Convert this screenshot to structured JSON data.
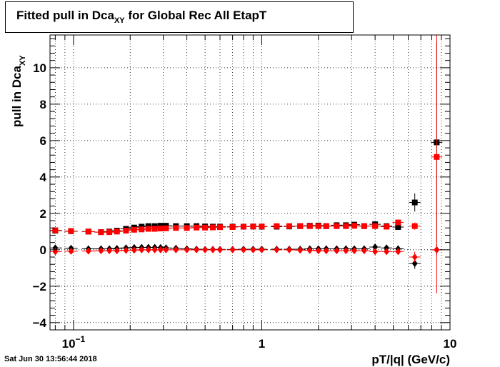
{
  "chart_data": {
    "type": "scatter",
    "title_main": "Fitted pull in Dca",
    "title_sub": "XY",
    "title_rest": " for Global Rec All EtapT",
    "xlabel": "pT/|q| (GeV/c)",
    "ylabel_main": "pull in Dca",
    "ylabel_sub": "XY",
    "x_scale": "log",
    "xlim": [
      0.075,
      10
    ],
    "ylim": [
      -4.4,
      11.8
    ],
    "grid": true,
    "y_ticks": [
      "−4",
      "−2",
      "0",
      "2",
      "4",
      "6",
      "8",
      "10"
    ],
    "y_tick_values": [
      -4,
      -2,
      0,
      2,
      4,
      6,
      8,
      10
    ],
    "x_ticks": [
      {
        "value": 0.1,
        "base": "10",
        "exp": "−1"
      },
      {
        "value": 1,
        "base": "1",
        "exp": ""
      },
      {
        "value": 10,
        "base": "10",
        "exp": ""
      }
    ],
    "series": [
      {
        "color": "#000000",
        "marker": "square",
        "x": [
          0.08,
          0.097,
          0.12,
          0.14,
          0.155,
          0.17,
          0.19,
          0.21,
          0.23,
          0.25,
          0.27,
          0.29,
          0.31,
          0.35,
          0.4,
          0.45,
          0.5,
          0.55,
          0.6,
          0.7,
          0.8,
          0.9,
          1.0,
          1.2,
          1.4,
          1.6,
          1.8,
          2.0,
          2.2,
          2.5,
          2.8,
          3.1,
          3.5,
          4.0,
          4.6,
          5.3,
          6.5,
          8.5
        ],
        "y": [
          1.05,
          1.02,
          1.0,
          0.97,
          1.0,
          1.05,
          1.15,
          1.22,
          1.27,
          1.3,
          1.3,
          1.32,
          1.32,
          1.3,
          1.3,
          1.3,
          1.28,
          1.27,
          1.27,
          1.27,
          1.27,
          1.28,
          1.27,
          1.27,
          1.28,
          1.3,
          1.32,
          1.33,
          1.3,
          1.35,
          1.35,
          1.38,
          1.3,
          1.4,
          1.3,
          1.25,
          2.6,
          5.9
        ],
        "yerr": [
          0.05,
          0.05,
          0.05,
          0.05,
          0.05,
          0.05,
          0.05,
          0.05,
          0.05,
          0.05,
          0.05,
          0.05,
          0.05,
          0.05,
          0.05,
          0.05,
          0.05,
          0.05,
          0.05,
          0.05,
          0.05,
          0.05,
          0.05,
          0.05,
          0.05,
          0.05,
          0.05,
          0.05,
          0.05,
          0.06,
          0.07,
          0.08,
          0.09,
          0.1,
          0.12,
          0.15,
          0.5,
          5.5
        ]
      },
      {
        "color": "#ff0000",
        "marker": "square",
        "x": [
          0.08,
          0.097,
          0.12,
          0.14,
          0.155,
          0.17,
          0.19,
          0.21,
          0.23,
          0.25,
          0.27,
          0.29,
          0.31,
          0.35,
          0.4,
          0.45,
          0.5,
          0.55,
          0.6,
          0.7,
          0.8,
          0.9,
          1.0,
          1.2,
          1.4,
          1.6,
          1.8,
          2.0,
          2.2,
          2.5,
          2.8,
          3.1,
          3.5,
          4.0,
          4.6,
          5.3,
          6.5,
          8.5
        ],
        "y": [
          1.07,
          1.03,
          1.0,
          0.97,
          0.97,
          1.0,
          1.05,
          1.1,
          1.12,
          1.15,
          1.15,
          1.17,
          1.18,
          1.2,
          1.2,
          1.22,
          1.22,
          1.23,
          1.24,
          1.25,
          1.27,
          1.28,
          1.28,
          1.3,
          1.3,
          1.3,
          1.3,
          1.3,
          1.3,
          1.3,
          1.3,
          1.32,
          1.3,
          1.3,
          1.27,
          1.5,
          1.3,
          5.1
        ],
        "yerr": [
          0.05,
          0.05,
          0.05,
          0.05,
          0.05,
          0.05,
          0.05,
          0.05,
          0.05,
          0.05,
          0.05,
          0.05,
          0.05,
          0.05,
          0.05,
          0.05,
          0.05,
          0.05,
          0.05,
          0.05,
          0.05,
          0.05,
          0.05,
          0.05,
          0.05,
          0.05,
          0.05,
          0.05,
          0.05,
          0.06,
          0.07,
          0.08,
          0.09,
          0.1,
          0.12,
          0.15,
          0.2,
          7.5
        ]
      },
      {
        "color": "#000000",
        "marker": "diamond",
        "x": [
          0.08,
          0.097,
          0.12,
          0.14,
          0.155,
          0.17,
          0.19,
          0.21,
          0.23,
          0.25,
          0.27,
          0.29,
          0.31,
          0.35,
          0.4,
          0.45,
          0.5,
          0.55,
          0.6,
          0.7,
          0.8,
          0.9,
          1.0,
          1.2,
          1.4,
          1.6,
          1.8,
          2.0,
          2.2,
          2.5,
          2.8,
          3.1,
          3.5,
          4.0,
          4.6,
          5.3,
          6.5,
          8.5
        ],
        "y": [
          0.1,
          0.08,
          0.05,
          0.05,
          0.05,
          0.07,
          0.1,
          0.12,
          0.13,
          0.13,
          0.13,
          0.12,
          0.1,
          0.08,
          0.05,
          0.03,
          0.02,
          0.02,
          0.02,
          0.02,
          0.03,
          0.03,
          0.03,
          0.03,
          0.03,
          0.03,
          0.05,
          0.05,
          0.05,
          0.05,
          0.05,
          0.05,
          0.05,
          0.15,
          0.1,
          0.05,
          -0.75,
          0.0
        ],
        "yerr": [
          0.05,
          0.05,
          0.05,
          0.05,
          0.05,
          0.05,
          0.05,
          0.05,
          0.05,
          0.05,
          0.05,
          0.05,
          0.05,
          0.05,
          0.05,
          0.05,
          0.05,
          0.05,
          0.05,
          0.05,
          0.05,
          0.05,
          0.05,
          0.05,
          0.05,
          0.05,
          0.05,
          0.05,
          0.05,
          0.06,
          0.07,
          0.08,
          0.09,
          0.1,
          0.12,
          0.15,
          0.3,
          0.3
        ]
      },
      {
        "color": "#ff0000",
        "marker": "diamond",
        "x": [
          0.08,
          0.097,
          0.12,
          0.14,
          0.155,
          0.17,
          0.19,
          0.21,
          0.23,
          0.25,
          0.27,
          0.29,
          0.31,
          0.35,
          0.4,
          0.45,
          0.5,
          0.55,
          0.6,
          0.7,
          0.8,
          0.9,
          1.0,
          1.2,
          1.4,
          1.6,
          1.8,
          2.0,
          2.2,
          2.5,
          2.8,
          3.1,
          3.5,
          4.0,
          4.6,
          5.3,
          6.5,
          8.5
        ],
        "y": [
          -0.1,
          -0.08,
          -0.07,
          -0.05,
          -0.05,
          -0.05,
          -0.03,
          -0.02,
          0.0,
          0.0,
          0.0,
          0.0,
          0.0,
          0.0,
          0.0,
          0.0,
          0.0,
          0.0,
          0.0,
          0.0,
          0.0,
          0.0,
          0.0,
          0.0,
          0.0,
          -0.02,
          -0.03,
          -0.05,
          -0.05,
          -0.05,
          -0.05,
          -0.05,
          -0.05,
          -0.1,
          -0.1,
          -0.1,
          -0.4,
          0.0
        ],
        "yerr": [
          0.05,
          0.05,
          0.05,
          0.05,
          0.05,
          0.05,
          0.05,
          0.05,
          0.05,
          0.05,
          0.05,
          0.05,
          0.05,
          0.05,
          0.05,
          0.05,
          0.05,
          0.05,
          0.05,
          0.05,
          0.05,
          0.05,
          0.05,
          0.05,
          0.05,
          0.05,
          0.05,
          0.05,
          0.05,
          0.06,
          0.07,
          0.08,
          0.09,
          0.1,
          0.12,
          0.15,
          0.3,
          0.3
        ]
      }
    ]
  },
  "timestamp": "Sat Jun 30 13:56:44 2018"
}
